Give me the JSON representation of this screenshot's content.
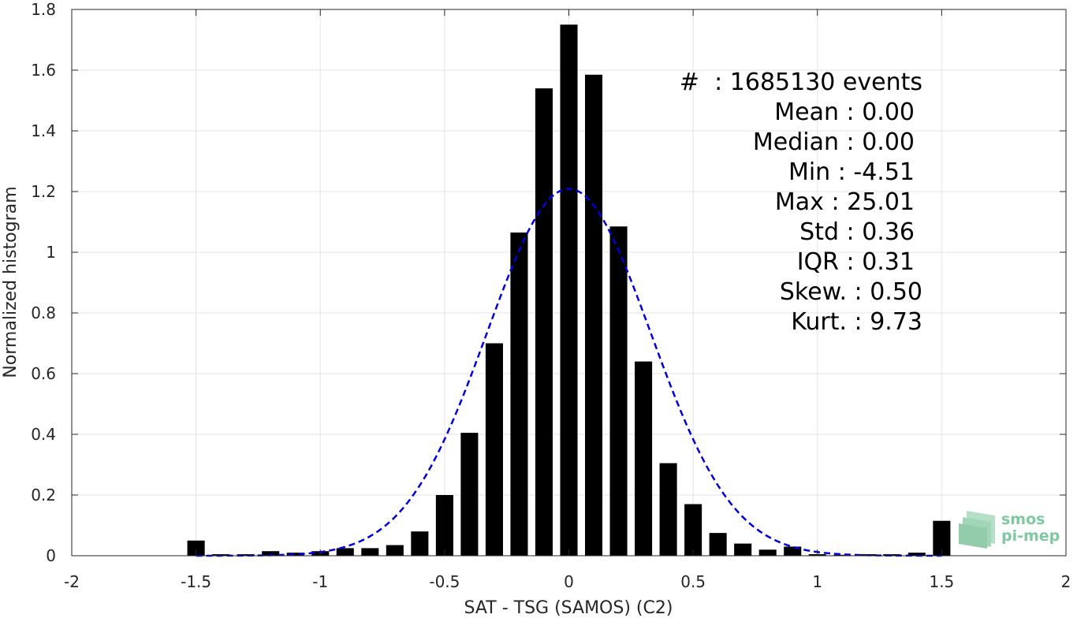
{
  "chart_data": {
    "type": "bar",
    "xlabel": "SAT - TSG (SAMOS) (C2)",
    "ylabel": "Normalized histogram",
    "xlim": [
      -2,
      2
    ],
    "ylim": [
      0,
      1.8
    ],
    "xticks": [
      -2,
      -1.5,
      -1,
      -0.5,
      0,
      0.5,
      1,
      1.5,
      2
    ],
    "xtick_labels": [
      "-2",
      "-1.5",
      "-1",
      "-0.5",
      "0",
      "0.5",
      "1",
      "1.5",
      "2"
    ],
    "yticks": [
      0,
      0.2,
      0.4,
      0.6,
      0.8,
      1,
      1.2,
      1.4,
      1.6,
      1.8
    ],
    "ytick_labels": [
      "0",
      "0.2",
      "0.4",
      "0.6",
      "0.8",
      "1",
      "1.2",
      "1.4",
      "1.6",
      "1.8"
    ],
    "grid": true,
    "bar_color": "#000000",
    "x": [
      -1.5,
      -1.4,
      -1.3,
      -1.2,
      -1.1,
      -1.0,
      -0.9,
      -0.8,
      -0.7,
      -0.6,
      -0.5,
      -0.4,
      -0.3,
      -0.2,
      -0.1,
      0.0,
      0.1,
      0.2,
      0.3,
      0.4,
      0.5,
      0.6,
      0.7,
      0.8,
      0.9,
      1.0,
      1.1,
      1.2,
      1.3,
      1.4,
      1.5
    ],
    "values": [
      0.05,
      0.005,
      0.005,
      0.015,
      0.01,
      0.015,
      0.025,
      0.025,
      0.035,
      0.08,
      0.2,
      0.405,
      0.7,
      1.065,
      1.54,
      1.75,
      1.585,
      1.085,
      0.64,
      0.305,
      0.17,
      0.075,
      0.04,
      0.02,
      0.03,
      0.005,
      0.003,
      0.005,
      0.005,
      0.01,
      0.115
    ],
    "fit_curve": {
      "type": "gaussian",
      "mean": 0.0,
      "std": 0.33,
      "x_range": [
        -1.5,
        1.5
      ],
      "color": "#0000dd",
      "style": "dashed"
    },
    "annotations": [
      "#  : 1685130 events",
      "Mean : 0.00",
      "Median : 0.00",
      "Min : -4.51",
      "Max : 25.01",
      "Std : 0.36",
      "IQR : 0.31",
      "Skew. : 0.50",
      "Kurt. : 9.73"
    ]
  },
  "logo": {
    "line1": "smos",
    "line2": "pi-mep",
    "color": "#7fc9a0"
  }
}
